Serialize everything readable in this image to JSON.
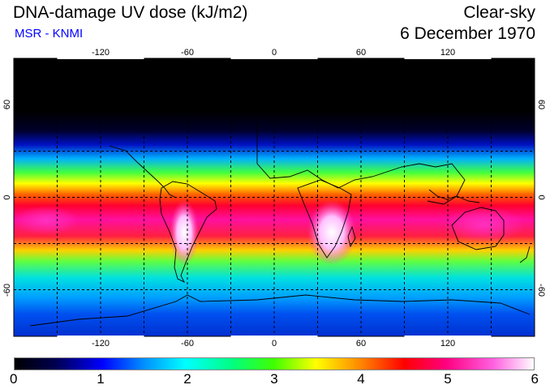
{
  "header": {
    "title": "DNA-damage UV dose (kJ/m2)",
    "subtitle": "MSR - KNMI",
    "condition": "Clear-sky",
    "date": "6 December 1970"
  },
  "map": {
    "lon_ticks": [
      "-120",
      "-60",
      "0",
      "60",
      "120"
    ],
    "lat_ticks_left": [
      "60",
      "0",
      "-60"
    ],
    "lat_ticks_right": [
      "60",
      "0",
      "-60"
    ]
  },
  "colorbar": {
    "ticks": [
      "0",
      "1",
      "2",
      "3",
      "4",
      "5",
      "6"
    ]
  },
  "colors": {
    "accent": "#0000ff"
  }
}
